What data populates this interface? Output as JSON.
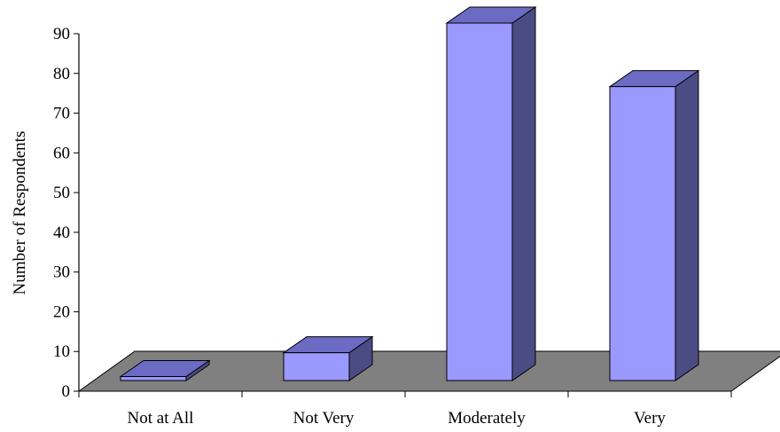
{
  "chart_data": {
    "type": "bar",
    "style": "3d-column",
    "categories": [
      "Not at All",
      "Not Very",
      "Moderately",
      "Very"
    ],
    "values": [
      1,
      7,
      90,
      74
    ],
    "title": "",
    "xlabel": "",
    "ylabel": "Number of Respondents",
    "ylim": [
      0,
      90
    ],
    "yticks": [
      0,
      10,
      20,
      30,
      40,
      50,
      60,
      70,
      80,
      90
    ],
    "grid": false,
    "legend": "none"
  },
  "colors": {
    "bar_front": "#9999ff",
    "bar_top": "#6b6bc4",
    "bar_side": "#4c4c85",
    "floor": "#808080",
    "axis": "#000000"
  }
}
